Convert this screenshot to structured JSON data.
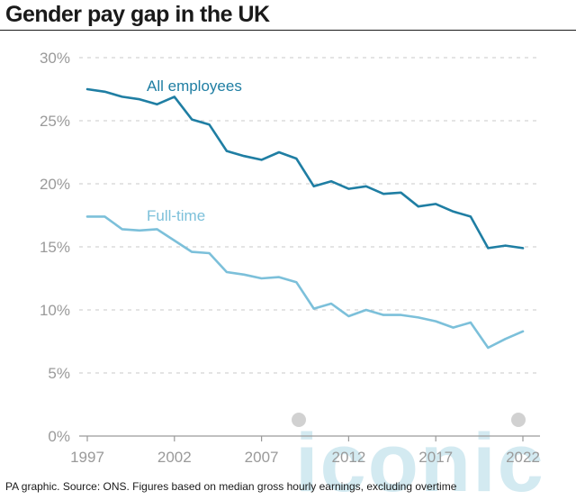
{
  "title": "Gender pay gap in the UK",
  "footer": "PA graphic. Source: ONS. Figures based on median gross hourly earnings, excluding overtime",
  "watermark": {
    "text": "iconic",
    "color": "#cfe8f0"
  },
  "colors": {
    "all_employees": "#1f7ea3",
    "full_time": "#7cc0da",
    "grid": "#c8c8c8",
    "axis": "#9a9a9a"
  },
  "chart_data": {
    "type": "line",
    "title": "Gender pay gap in the UK",
    "xlabel": "",
    "ylabel": "",
    "xlim": [
      1997,
      2022
    ],
    "ylim": [
      0,
      30
    ],
    "x_ticks": [
      1997,
      2002,
      2007,
      2012,
      2017,
      2022
    ],
    "y_ticks": [
      0,
      5,
      10,
      15,
      20,
      25,
      30
    ],
    "y_tick_labels": [
      "0%",
      "5%",
      "10%",
      "15%",
      "20%",
      "25%",
      "30%"
    ],
    "grid": true,
    "x": [
      1997,
      1998,
      1999,
      2000,
      2001,
      2002,
      2003,
      2004,
      2005,
      2006,
      2007,
      2008,
      2009,
      2010,
      2011,
      2012,
      2013,
      2014,
      2015,
      2016,
      2017,
      2018,
      2019,
      2020,
      2021,
      2022
    ],
    "series": [
      {
        "name": "All employees",
        "color": "#1f7ea3",
        "values": [
          27.5,
          27.3,
          26.9,
          26.7,
          26.3,
          26.9,
          25.1,
          24.7,
          22.6,
          22.2,
          21.9,
          22.5,
          22.0,
          19.8,
          20.2,
          19.6,
          19.8,
          19.2,
          19.3,
          18.2,
          18.4,
          17.8,
          17.4,
          14.9,
          15.1,
          14.9
        ]
      },
      {
        "name": "Full-time",
        "color": "#7cc0da",
        "values": [
          17.4,
          17.4,
          16.4,
          16.3,
          16.4,
          15.5,
          14.6,
          14.5,
          13.0,
          12.8,
          12.5,
          12.6,
          12.2,
          10.1,
          10.5,
          9.5,
          10.0,
          9.6,
          9.6,
          9.4,
          9.1,
          8.6,
          9.0,
          7.0,
          7.7,
          8.3
        ]
      }
    ]
  }
}
